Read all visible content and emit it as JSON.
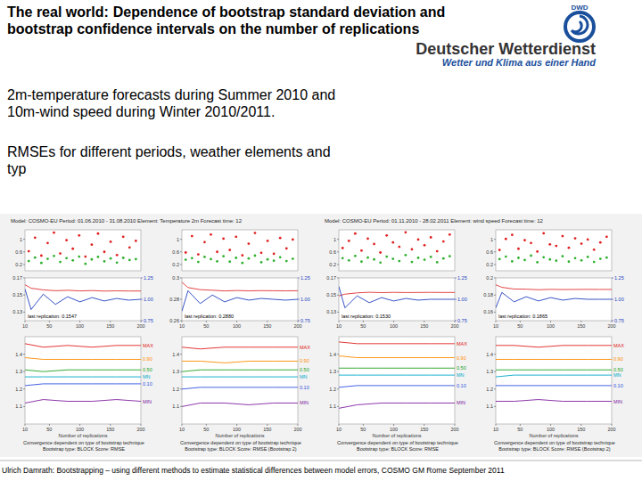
{
  "slide": {
    "title_lead": "The real world:",
    "title_lines": [
      "Dependence of bootstrap standard deviation and",
      "bootstrap confidence intervals on the number of replications"
    ],
    "logo": {
      "abbr": "DWD",
      "name": "Deutscher Wetterdienst",
      "slogan": "Wetter und Klima aus einer Hand"
    },
    "body": [
      [
        "2m-temperature forecasts during Summer 2010 and",
        "10m-wind speed during Winter 2010/2011."
      ],
      [
        "RMSEs for different periods, weather elements and",
        "typ"
      ]
    ],
    "footer": "Ulrich Damrath: Bootstrapping – using different methods to estimate statistical differences between model errors, COSMO GM Rome September 2011"
  },
  "chart_data": [
    {
      "type": "scatter",
      "title": "Model: COSMO-EU Period: 01.06.2010 - 31.08.2010 Element: Temperature 2m Forecast time: 12",
      "x": [
        3,
        8,
        13,
        18,
        23,
        28,
        33,
        38,
        43,
        48,
        53,
        58,
        63,
        68,
        73,
        78,
        83,
        88
      ],
      "series": [
        {
          "color": "#e02020",
          "marker": "circle",
          "values": [
            0.62,
            1.05,
            0.48,
            0.88,
            1.21,
            0.55,
            0.97,
            0.7,
            1.12,
            0.45,
            0.83,
            1.18,
            0.6,
            0.92,
            0.5,
            1.08,
            0.74,
            0.95
          ]
        },
        {
          "color": "#30b030",
          "marker": "circle",
          "values": [
            0.31,
            0.42,
            0.25,
            0.38,
            0.47,
            0.28,
            0.4,
            0.33,
            0.45,
            0.22,
            0.36,
            0.44,
            0.3,
            0.39,
            0.26,
            0.41,
            0.34,
            0.37
          ]
        }
      ],
      "xlim": [
        0,
        92
      ],
      "ylim": [
        0,
        1.3
      ],
      "yticks": [
        0.2,
        0.6,
        1
      ],
      "tick_labels": "y"
    },
    {
      "type": "line",
      "x": [
        10,
        20,
        40,
        60,
        80,
        100,
        120,
        140,
        160,
        180,
        200
      ],
      "series": [
        {
          "color": "#e03030",
          "values": [
            0.162,
            0.158,
            0.156,
            0.155,
            0.1555,
            0.1548,
            0.1552,
            0.1546,
            0.1549,
            0.1547,
            0.1547
          ]
        },
        {
          "color": "#2040c0",
          "axis": "y2",
          "values": [
            1.12,
            0.88,
            1.06,
            0.94,
            1.03,
            0.97,
            1.02,
            0.98,
            1.01,
            0.99,
            1.0
          ]
        }
      ],
      "xlim": [
        10,
        200
      ],
      "xticks": [
        10,
        50,
        100,
        150,
        200
      ],
      "ylim": [
        0.12,
        0.17
      ],
      "yticks": [
        0.13,
        0.15,
        0.17
      ],
      "y2lim": [
        0.75,
        1.25
      ],
      "y2ticks": [
        0.75,
        {
          "value": 1,
          "label": "1.00"
        },
        1.25
      ],
      "annotation": "last replication: 0.1547"
    },
    {
      "type": "line",
      "x": [
        10,
        40,
        80,
        120,
        160,
        200
      ],
      "series": [
        {
          "name": "MAX",
          "color": "#e02020",
          "values": [
            1.46,
            1.44,
            1.45,
            1.44,
            1.45,
            1.45
          ]
        },
        {
          "name": "0.90",
          "color": "#ff8c00",
          "values": [
            1.38,
            1.37,
            1.37,
            1.37,
            1.37,
            1.37
          ]
        },
        {
          "name": "0.50",
          "color": "#20a020",
          "values": [
            1.31,
            1.3,
            1.31,
            1.31,
            1.31,
            1.31
          ]
        },
        {
          "name": "MN",
          "color": "#00a8c8",
          "values": [
            1.27,
            1.27,
            1.27,
            1.27,
            1.27,
            1.27
          ]
        },
        {
          "name": "0.10",
          "color": "#3050e0",
          "values": [
            1.22,
            1.23,
            1.23,
            1.23,
            1.23,
            1.23
          ]
        },
        {
          "name": "MIN",
          "color": "#8020a0",
          "values": [
            1.12,
            1.14,
            1.13,
            1.13,
            1.14,
            1.13
          ]
        }
      ],
      "xlim": [
        10,
        200
      ],
      "xticks": [
        10,
        50,
        100,
        150,
        200
      ],
      "ylim": [
        1,
        1.5
      ],
      "yticks": [
        1.1,
        1.2,
        1.3,
        1.4
      ],
      "legend": "right",
      "xlabel": "Number of replications",
      "caption": [
        "Convergence dependent on type of bootstrap technique",
        "Bootstrap type: BLOCK  Score: RMSE"
      ]
    },
    {
      "type": "scatter",
      "x": [
        3,
        8,
        13,
        18,
        23,
        28,
        33,
        38,
        43,
        48,
        53,
        58,
        63,
        68,
        73,
        78,
        83,
        88
      ],
      "series": [
        {
          "color": "#e02020",
          "marker": "circle",
          "values": [
            0.58,
            1.1,
            0.52,
            0.91,
            1.15,
            0.6,
            1.02,
            0.66,
            1.08,
            0.49,
            0.86,
            1.2,
            0.57,
            0.95,
            0.54,
            1.04,
            0.71,
            0.99
          ]
        },
        {
          "color": "#30b030",
          "marker": "circle",
          "values": [
            0.35,
            0.4,
            0.28,
            0.44,
            0.37,
            0.3,
            0.46,
            0.29,
            0.41,
            0.25,
            0.39,
            0.48,
            0.27,
            0.36,
            0.32,
            0.43,
            0.31,
            0.38
          ]
        }
      ],
      "xlim": [
        0,
        92
      ],
      "ylim": [
        0,
        1.3
      ],
      "yticks": [
        0.2,
        0.6,
        1
      ],
      "tick_labels": "y"
    },
    {
      "type": "line",
      "x": [
        10,
        20,
        40,
        60,
        80,
        100,
        120,
        140,
        160,
        180,
        200
      ],
      "series": [
        {
          "color": "#e03030",
          "values": [
            0.296,
            0.291,
            0.289,
            0.2885,
            0.2878,
            0.2882,
            0.2879,
            0.2881,
            0.288,
            0.2879,
            0.288
          ]
        },
        {
          "color": "#2040c0",
          "axis": "y2",
          "values": [
            0.86,
            1.1,
            0.95,
            1.05,
            0.97,
            1.02,
            0.99,
            1.01,
            1.0,
            0.99,
            1.0
          ]
        }
      ],
      "xlim": [
        10,
        200
      ],
      "xticks": [
        10,
        50,
        100,
        150,
        200
      ],
      "ylim": [
        0.26,
        0.3
      ],
      "yticks": [
        0.26,
        0.28,
        0.3
      ],
      "y2lim": [
        0.75,
        1.25
      ],
      "y2ticks": [
        0.75,
        {
          "value": 1,
          "label": "1.00"
        },
        1.25
      ],
      "annotation": "last replication: 0.2880"
    },
    {
      "type": "line",
      "x": [
        10,
        40,
        80,
        120,
        160,
        200
      ],
      "series": [
        {
          "name": "MAX",
          "color": "#e02020",
          "values": [
            1.44,
            1.43,
            1.44,
            1.44,
            1.44,
            1.44
          ]
        },
        {
          "name": "0.90",
          "color": "#ff8c00",
          "values": [
            1.36,
            1.36,
            1.35,
            1.36,
            1.36,
            1.36
          ]
        },
        {
          "name": "0.50",
          "color": "#20a020",
          "values": [
            1.3,
            1.31,
            1.31,
            1.31,
            1.31,
            1.31
          ]
        },
        {
          "name": "MN",
          "color": "#00a8c8",
          "values": [
            1.27,
            1.27,
            1.27,
            1.27,
            1.27,
            1.27
          ]
        },
        {
          "name": "0.10",
          "color": "#3050e0",
          "values": [
            1.2,
            1.21,
            1.21,
            1.21,
            1.21,
            1.21
          ]
        },
        {
          "name": "MIN",
          "color": "#8020a0",
          "values": [
            1.1,
            1.12,
            1.12,
            1.11,
            1.12,
            1.12
          ]
        }
      ],
      "xlim": [
        10,
        200
      ],
      "xticks": [
        10,
        50,
        100,
        150,
        200
      ],
      "ylim": [
        1,
        1.5
      ],
      "yticks": [
        1.1,
        1.2,
        1.3,
        1.4
      ],
      "legend": "right",
      "xlabel": "Number of replications",
      "caption": [
        "Convergence dependent on type of bootstrap technique",
        "Bootstrap type: BLOCK  Score: RMSE (Bootstrap 2)"
      ]
    },
    {
      "type": "scatter",
      "title": "Model: COSMO-EU Period: 01.11.2010 - 28.02.2011 Element: wind speed Forecast time: 12",
      "x": [
        3,
        8,
        13,
        18,
        23,
        28,
        33,
        38,
        43,
        48,
        53,
        58,
        63,
        68,
        73,
        78,
        83,
        88
      ],
      "series": [
        {
          "color": "#e02020",
          "marker": "circle",
          "values": [
            0.72,
            0.95,
            1.18,
            0.64,
            1.02,
            0.85,
            0.58,
            1.12,
            0.9,
            0.76,
            1.22,
            0.68,
            0.99,
            0.81,
            1.06,
            0.62,
            0.93,
            1.15
          ]
        },
        {
          "color": "#30b030",
          "marker": "circle",
          "values": [
            0.4,
            0.33,
            0.47,
            0.29,
            0.42,
            0.36,
            0.26,
            0.45,
            0.38,
            0.31,
            0.5,
            0.28,
            0.41,
            0.35,
            0.44,
            0.27,
            0.39,
            0.46
          ]
        }
      ],
      "xlim": [
        0,
        92
      ],
      "ylim": [
        0,
        1.3
      ],
      "yticks": [
        0.2,
        0.6,
        1
      ],
      "tick_labels": "y"
    },
    {
      "type": "line",
      "x": [
        10,
        20,
        40,
        60,
        80,
        100,
        120,
        140,
        160,
        180,
        200
      ],
      "series": [
        {
          "color": "#e03030",
          "values": [
            0.149,
            0.151,
            0.1525,
            0.1532,
            0.1528,
            0.1531,
            0.1529,
            0.153,
            0.1531,
            0.153,
            0.153
          ]
        },
        {
          "color": "#2040c0",
          "axis": "y2",
          "values": [
            1.15,
            0.9,
            1.04,
            0.96,
            1.02,
            0.98,
            1.01,
            0.99,
            1.0,
            1.0,
            1.0
          ]
        }
      ],
      "xlim": [
        10,
        200
      ],
      "xticks": [
        10,
        50,
        100,
        150,
        200
      ],
      "ylim": [
        0.12,
        0.17
      ],
      "yticks": [
        0.13,
        0.15,
        0.17
      ],
      "y2lim": [
        0.75,
        1.25
      ],
      "y2ticks": [
        0.75,
        {
          "value": 1,
          "label": "1.00"
        },
        1.25
      ],
      "annotation": "last replication: 0.1530"
    },
    {
      "type": "line",
      "x": [
        10,
        40,
        80,
        120,
        160,
        200
      ],
      "series": [
        {
          "name": "MAX",
          "color": "#e02020",
          "values": [
            1.47,
            1.46,
            1.46,
            1.46,
            1.46,
            1.46
          ]
        },
        {
          "name": "0.90",
          "color": "#ff8c00",
          "values": [
            1.39,
            1.38,
            1.38,
            1.38,
            1.38,
            1.38
          ]
        },
        {
          "name": "0.50",
          "color": "#20a020",
          "values": [
            1.32,
            1.32,
            1.32,
            1.32,
            1.32,
            1.32
          ]
        },
        {
          "name": "MN",
          "color": "#00a8c8",
          "values": [
            1.28,
            1.28,
            1.28,
            1.28,
            1.28,
            1.28
          ]
        },
        {
          "name": "0.10",
          "color": "#3050e0",
          "values": [
            1.21,
            1.22,
            1.22,
            1.22,
            1.22,
            1.22
          ]
        },
        {
          "name": "MIN",
          "color": "#8020a0",
          "values": [
            1.09,
            1.11,
            1.12,
            1.12,
            1.12,
            1.12
          ]
        }
      ],
      "xlim": [
        10,
        200
      ],
      "xticks": [
        10,
        50,
        100,
        150,
        200
      ],
      "ylim": [
        1,
        1.5
      ],
      "yticks": [
        1.1,
        1.2,
        1.3,
        1.4
      ],
      "legend": "right",
      "xlabel": "Number of replications",
      "caption": [
        "Convergence dependent on type of bootstrap technique",
        "Bootstrap type: BLOCK  Score: RMSE"
      ]
    },
    {
      "type": "scatter",
      "x": [
        3,
        8,
        13,
        18,
        23,
        28,
        33,
        38,
        43,
        48,
        53,
        58,
        63,
        68,
        73,
        78,
        83,
        88
      ],
      "series": [
        {
          "color": "#e02020",
          "marker": "circle",
          "values": [
            0.66,
            1.01,
            1.14,
            0.7,
            0.97,
            0.88,
            0.61,
            1.19,
            0.84,
            0.79,
            1.1,
            0.73,
            1.03,
            0.86,
            0.99,
            0.67,
            0.9,
            1.08
          ]
        },
        {
          "color": "#30b030",
          "marker": "circle",
          "values": [
            0.37,
            0.45,
            0.3,
            0.41,
            0.34,
            0.48,
            0.27,
            0.43,
            0.36,
            0.32,
            0.46,
            0.29,
            0.4,
            0.33,
            0.44,
            0.28,
            0.38,
            0.42
          ]
        }
      ],
      "xlim": [
        0,
        92
      ],
      "ylim": [
        0,
        1.3
      ],
      "yticks": [
        0.2,
        0.6,
        1
      ],
      "tick_labels": "y"
    },
    {
      "type": "line",
      "x": [
        10,
        20,
        40,
        60,
        80,
        100,
        120,
        140,
        160,
        180,
        200
      ],
      "series": [
        {
          "color": "#e03030",
          "values": [
            0.192,
            0.189,
            0.187,
            0.1868,
            0.1862,
            0.1866,
            0.1864,
            0.1865,
            0.1866,
            0.1865,
            0.1865
          ]
        },
        {
          "color": "#2040c0",
          "axis": "y2",
          "values": [
            0.9,
            1.08,
            0.97,
            1.03,
            0.98,
            1.02,
            0.99,
            1.01,
            1.0,
            1.0,
            1.0
          ]
        }
      ],
      "xlim": [
        10,
        200
      ],
      "xticks": [
        10,
        50,
        100,
        150,
        200
      ],
      "ylim": [
        0.15,
        0.2
      ],
      "yticks": [
        0.16,
        0.18,
        0.2
      ],
      "y2lim": [
        0.75,
        1.25
      ],
      "y2ticks": [
        0.75,
        {
          "value": 1,
          "label": "1.00"
        },
        1.25
      ],
      "annotation": "last replication: 0.1865"
    },
    {
      "type": "line",
      "x": [
        10,
        40,
        80,
        120,
        160,
        200
      ],
      "series": [
        {
          "name": "MAX",
          "color": "#e02020",
          "values": [
            1.45,
            1.45,
            1.44,
            1.45,
            1.45,
            1.45
          ]
        },
        {
          "name": "0.90",
          "color": "#ff8c00",
          "values": [
            1.37,
            1.37,
            1.37,
            1.37,
            1.37,
            1.37
          ]
        },
        {
          "name": "0.50",
          "color": "#20a020",
          "values": [
            1.31,
            1.31,
            1.31,
            1.31,
            1.31,
            1.31
          ]
        },
        {
          "name": "MN",
          "color": "#00a8c8",
          "values": [
            1.27,
            1.28,
            1.28,
            1.28,
            1.28,
            1.28
          ]
        },
        {
          "name": "0.10",
          "color": "#3050e0",
          "values": [
            1.22,
            1.22,
            1.22,
            1.22,
            1.22,
            1.22
          ]
        },
        {
          "name": "MIN",
          "color": "#8020a0",
          "values": [
            1.13,
            1.13,
            1.14,
            1.13,
            1.13,
            1.13
          ]
        }
      ],
      "xlim": [
        10,
        200
      ],
      "xticks": [
        10,
        50,
        100,
        150,
        200
      ],
      "ylim": [
        1,
        1.5
      ],
      "yticks": [
        1.1,
        1.2,
        1.3,
        1.4
      ],
      "legend": "right",
      "xlabel": "Number of replications",
      "caption": [
        "Convergence dependent on type of bootstrap technique",
        "Bootstrap type: BLOCK  Score: RMSE (Bootstrap 2)"
      ]
    }
  ]
}
